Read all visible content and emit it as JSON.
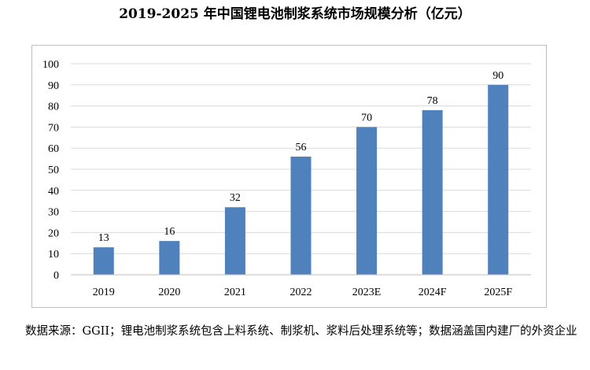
{
  "header": {
    "title": "2019-2025 年中国锂电池制浆系统市场规模分析（亿元）"
  },
  "footnote": {
    "text": "数据来源：GGII；锂电池制浆系统包含上料系统、制浆机、浆料后处理系统等；数据涵盖国内建厂的外资企业"
  },
  "chart_data": {
    "type": "bar",
    "title": "2019-2025 年中国锂电池制浆系统市场规模分析（亿元）",
    "categories": [
      "2019",
      "2020",
      "2021",
      "2022",
      "2023E",
      "2024F",
      "2025F"
    ],
    "values": [
      13,
      16,
      32,
      56,
      70,
      78,
      90
    ],
    "ylim": [
      0,
      100
    ],
    "yticks": [
      0,
      10,
      20,
      30,
      40,
      50,
      60,
      70,
      80,
      90,
      100
    ],
    "grid": true,
    "legend": "none",
    "bar_color": "#4f81bd",
    "grid_color": "#d9d9d9",
    "axis_color": "#bfbfbf"
  }
}
